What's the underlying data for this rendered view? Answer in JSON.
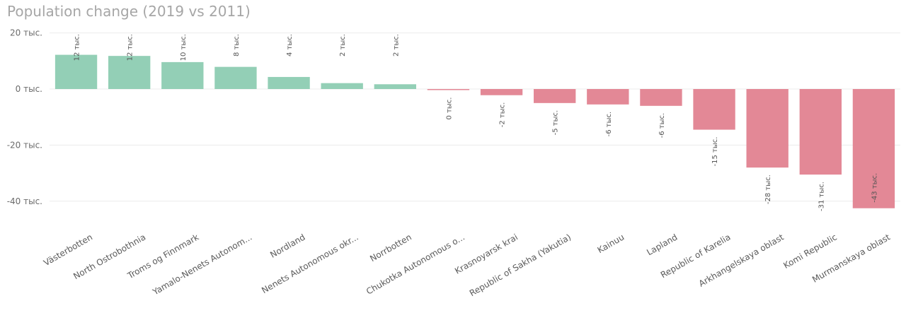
{
  "chart_data": {
    "type": "bar",
    "title": "Population change (2019 vs 2011)",
    "ylim": [
      -45,
      20
    ],
    "y_ticks": [
      20,
      0,
      -20,
      -40
    ],
    "y_tick_labels": [
      "20 тыс.",
      "0 тыс.",
      "-20 тыс.",
      "-40 тыс."
    ],
    "grid": true,
    "categories": [
      "Västerbotten",
      "North Ostrobothnia",
      "Troms og Finnmark",
      "Yamalo-Nenets Autonom...",
      "Nordland",
      "Nenets Autonomous okr...",
      "Norrbotten",
      "Chukotka Autonomous o...",
      "Krasnoyarsk krai",
      "Republic of Sakha (Yakutia)",
      "Kainuu",
      "Lapland",
      "Republic of Karelia",
      "Arkhangelskaya oblast",
      "Komi Republic",
      "Murmanskaya oblast"
    ],
    "values": [
      12.2,
      11.8,
      9.6,
      7.9,
      4.3,
      2.1,
      1.7,
      -0.3,
      -2.2,
      -5.0,
      -5.5,
      -6.0,
      -14.5,
      -28.0,
      -30.5,
      -42.5
    ],
    "data_labels": [
      "12 тыс.",
      "12 тыс.",
      "10 тыс.",
      "8 тыс.",
      "4 тыс.",
      "2 тыс.",
      "2 тыс.",
      "0 тыс.",
      "-2 тыс.",
      "-5 тыс.",
      "-6 тыс.",
      "-6 тыс.",
      "-15 тыс.",
      "-28 тыс.",
      "-31 тыс.",
      "-43 тыс."
    ],
    "colors": {
      "positive": "#93cfb6",
      "negative": "#e38896"
    }
  }
}
